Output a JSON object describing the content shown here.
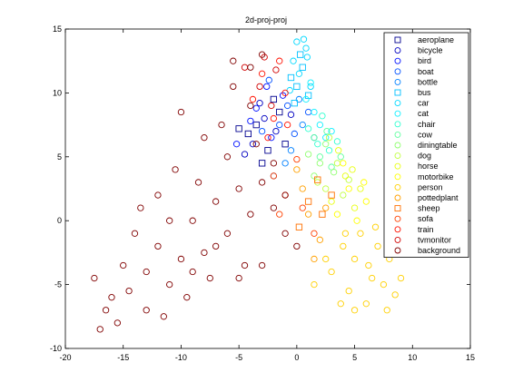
{
  "chart_data": {
    "type": "scatter",
    "title": "2d-proj-proj",
    "xlabel": "",
    "ylabel": "",
    "xlim": [
      -20,
      15
    ],
    "ylim": [
      -10,
      15
    ],
    "xticks": [
      -20,
      -15,
      -10,
      -5,
      0,
      5,
      10,
      15
    ],
    "yticks": [
      -10,
      -5,
      0,
      5,
      10,
      15
    ],
    "xtick_labels": [
      "-20",
      "-15",
      "-10",
      "-5",
      "0",
      "5",
      "10",
      "15"
    ],
    "ytick_labels": [
      "-10",
      "-5",
      "0",
      "5",
      "10",
      "15"
    ],
    "grid": false,
    "legend_position": "top-right",
    "series": [
      {
        "name": "aeroplane",
        "marker": "square",
        "color": "#00008f",
        "points": [
          [
            -2.5,
            5.5
          ],
          [
            -3.5,
            7.5
          ],
          [
            -1.5,
            8.5
          ],
          [
            -4.2,
            6.8
          ],
          [
            -2.0,
            9.5
          ],
          [
            -3.0,
            4.5
          ],
          [
            -1.0,
            6.0
          ],
          [
            -5.0,
            7.2
          ]
        ]
      },
      {
        "name": "bicycle",
        "marker": "circle",
        "color": "#0000c0",
        "points": [
          [
            -3.8,
            6.0
          ],
          [
            -2.8,
            8.0
          ],
          [
            -4.5,
            5.2
          ],
          [
            -1.8,
            7.0
          ],
          [
            -3.2,
            9.2
          ],
          [
            -0.5,
            8.3
          ]
        ]
      },
      {
        "name": "bird",
        "marker": "circle",
        "color": "#0010ff",
        "points": [
          [
            -4.0,
            7.8
          ],
          [
            -2.2,
            6.5
          ],
          [
            -5.2,
            6.0
          ],
          [
            -1.2,
            9.8
          ],
          [
            -3.5,
            8.8
          ],
          [
            -2.6,
            10.5
          ]
        ]
      },
      {
        "name": "boat",
        "marker": "circle",
        "color": "#0050ff",
        "points": [
          [
            -1.5,
            7.5
          ],
          [
            -0.8,
            9.0
          ],
          [
            -2.4,
            11.0
          ],
          [
            -3.0,
            7.0
          ],
          [
            -0.2,
            6.8
          ],
          [
            1.0,
            8.5
          ]
        ]
      },
      {
        "name": "bottle",
        "marker": "circle",
        "color": "#0080ff",
        "points": [
          [
            -1.0,
            4.5
          ],
          [
            0.5,
            7.5
          ],
          [
            -2.0,
            3.5
          ],
          [
            1.5,
            6.5
          ],
          [
            -0.5,
            5.5
          ],
          [
            0.2,
            9.5
          ]
        ]
      },
      {
        "name": "bus",
        "marker": "square",
        "color": "#00c0ff",
        "points": [
          [
            0.0,
            10.5
          ],
          [
            0.5,
            12.0
          ],
          [
            -0.5,
            11.2
          ],
          [
            1.0,
            9.8
          ],
          [
            0.3,
            13.0
          ],
          [
            -0.2,
            9.2
          ]
        ]
      },
      {
        "name": "car",
        "marker": "circle",
        "color": "#00d8ff",
        "points": [
          [
            0.2,
            11.5
          ],
          [
            0.8,
            13.5
          ],
          [
            -0.3,
            12.5
          ],
          [
            0.6,
            14.2
          ],
          [
            1.2,
            10.5
          ],
          [
            0.0,
            14.0
          ],
          [
            0.9,
            12.8
          ],
          [
            -0.6,
            10.2
          ]
        ]
      },
      {
        "name": "cat",
        "marker": "circle",
        "color": "#10f0ff",
        "points": [
          [
            1.5,
            8.5
          ],
          [
            2.0,
            7.5
          ],
          [
            0.8,
            9.5
          ],
          [
            2.5,
            6.5
          ],
          [
            1.2,
            10.8
          ],
          [
            3.0,
            7.0
          ]
        ]
      },
      {
        "name": "chair",
        "marker": "circle",
        "color": "#30ffd0",
        "points": [
          [
            1.8,
            6.0
          ],
          [
            2.8,
            5.5
          ],
          [
            1.0,
            7.2
          ],
          [
            3.5,
            6.2
          ],
          [
            2.2,
            8.2
          ]
        ]
      },
      {
        "name": "cow",
        "marker": "circle",
        "color": "#60ffa0",
        "points": [
          [
            2.0,
            5.0
          ],
          [
            3.0,
            4.2
          ],
          [
            1.5,
            6.5
          ],
          [
            2.6,
            7.0
          ],
          [
            3.8,
            5.0
          ]
        ]
      },
      {
        "name": "diningtable",
        "marker": "circle",
        "color": "#90ff70",
        "points": [
          [
            1.5,
            3.5
          ],
          [
            2.5,
            6.0
          ],
          [
            3.2,
            3.8
          ],
          [
            1.0,
            5.2
          ],
          [
            2.0,
            4.5
          ]
        ]
      },
      {
        "name": "dog",
        "marker": "circle",
        "color": "#c0ff40",
        "points": [
          [
            2.5,
            2.5
          ],
          [
            3.5,
            4.5
          ],
          [
            4.0,
            2.0
          ],
          [
            2.8,
            6.5
          ],
          [
            1.8,
            3.0
          ],
          [
            4.5,
            3.2
          ]
        ]
      },
      {
        "name": "horse",
        "marker": "circle",
        "color": "#e8ff10",
        "points": [
          [
            3.0,
            1.5
          ],
          [
            4.2,
            3.5
          ],
          [
            5.0,
            1.0
          ],
          [
            3.6,
            5.5
          ],
          [
            4.8,
            4.0
          ],
          [
            5.5,
            2.5
          ]
        ]
      },
      {
        "name": "motorbike",
        "marker": "circle",
        "color": "#ffff00",
        "points": [
          [
            3.5,
            0.5
          ],
          [
            4.5,
            2.5
          ],
          [
            5.2,
            0.0
          ],
          [
            6.0,
            1.5
          ],
          [
            4.0,
            4.5
          ],
          [
            5.8,
            3.0
          ]
        ]
      },
      {
        "name": "person",
        "marker": "circle",
        "color": "#ffd000",
        "points": [
          [
            5.0,
            -3.0
          ],
          [
            6.5,
            -4.5
          ],
          [
            4.0,
            -2.0
          ],
          [
            7.5,
            -5.0
          ],
          [
            5.5,
            -1.0
          ],
          [
            3.0,
            -4.0
          ],
          [
            8.0,
            -3.0
          ],
          [
            6.0,
            -6.5
          ],
          [
            4.5,
            -5.5
          ],
          [
            7.0,
            -2.0
          ],
          [
            2.5,
            -3.0
          ],
          [
            9.0,
            -4.5
          ],
          [
            5.0,
            -7.0
          ],
          [
            6.8,
            -0.5
          ],
          [
            3.8,
            -6.5
          ],
          [
            8.5,
            -5.8
          ],
          [
            1.5,
            -5.0
          ],
          [
            7.8,
            -7.0
          ],
          [
            4.2,
            -1.0
          ],
          [
            6.2,
            -3.5
          ]
        ]
      },
      {
        "name": "pottedplant",
        "marker": "circle",
        "color": "#ffa000",
        "points": [
          [
            1.0,
            0.5
          ],
          [
            2.0,
            -1.5
          ],
          [
            0.5,
            2.5
          ],
          [
            2.5,
            1.0
          ],
          [
            1.5,
            -3.0
          ],
          [
            0.0,
            4.0
          ]
        ]
      },
      {
        "name": "sheep",
        "marker": "square",
        "color": "#ff7000",
        "points": [
          [
            1.0,
            1.5
          ],
          [
            2.2,
            0.5
          ],
          [
            0.2,
            -0.5
          ],
          [
            1.8,
            3.2
          ],
          [
            3.0,
            2.0
          ]
        ]
      },
      {
        "name": "sofa",
        "marker": "circle",
        "color": "#ff4000",
        "points": [
          [
            -1.0,
            2.0
          ],
          [
            0.5,
            1.0
          ],
          [
            -2.0,
            3.5
          ],
          [
            1.5,
            -1.0
          ],
          [
            0.0,
            4.8
          ],
          [
            -1.5,
            0.5
          ]
        ]
      },
      {
        "name": "train",
        "marker": "circle",
        "color": "#ff1000",
        "points": [
          [
            -2.0,
            8.0
          ],
          [
            -1.0,
            10.0
          ],
          [
            -3.0,
            11.5
          ],
          [
            -2.5,
            6.5
          ],
          [
            -1.5,
            12.5
          ],
          [
            -3.8,
            9.5
          ],
          [
            -0.8,
            7.5
          ]
        ]
      },
      {
        "name": "tvmonitor",
        "marker": "circle",
        "color": "#d00000",
        "points": [
          [
            -2.2,
            9.0
          ],
          [
            -3.2,
            10.5
          ],
          [
            -1.8,
            11.8
          ],
          [
            -4.5,
            12.0
          ],
          [
            -2.8,
            12.8
          ]
        ]
      },
      {
        "name": "background",
        "marker": "circle",
        "color": "#800000",
        "points": [
          [
            -17.5,
            -4.5
          ],
          [
            -16.0,
            -6.0
          ],
          [
            -15.0,
            -3.5
          ],
          [
            -14.0,
            -1.0
          ],
          [
            -13.5,
            1.0
          ],
          [
            -12.0,
            -2.0
          ],
          [
            -11.0,
            -5.0
          ],
          [
            -10.0,
            -3.0
          ],
          [
            -9.0,
            0.0
          ],
          [
            -8.0,
            -2.5
          ],
          [
            -7.0,
            1.5
          ],
          [
            -6.0,
            -1.0
          ],
          [
            -5.0,
            2.5
          ],
          [
            -4.0,
            0.5
          ],
          [
            -3.0,
            3.0
          ],
          [
            -2.0,
            1.0
          ],
          [
            -1.0,
            -1.0
          ],
          [
            -13.0,
            -7.0
          ],
          [
            -15.5,
            -8.0
          ],
          [
            -12.0,
            2.0
          ],
          [
            -10.5,
            4.0
          ],
          [
            -8.5,
            3.0
          ],
          [
            -7.5,
            -4.5
          ],
          [
            -6.0,
            5.0
          ],
          [
            -4.5,
            -3.5
          ],
          [
            -3.5,
            6.0
          ],
          [
            -11.5,
            -7.5
          ],
          [
            -9.5,
            -6.0
          ],
          [
            -14.5,
            -5.5
          ],
          [
            -16.5,
            -7.0
          ],
          [
            -10.0,
            8.5
          ],
          [
            -8.0,
            6.5
          ],
          [
            -6.5,
            7.5
          ],
          [
            -5.5,
            10.5
          ],
          [
            -4.0,
            9.0
          ],
          [
            -2.0,
            4.5
          ],
          [
            -1.0,
            2.0
          ],
          [
            0.0,
            -2.0
          ],
          [
            -5.0,
            -4.5
          ],
          [
            -3.0,
            -3.5
          ],
          [
            -17.0,
            -8.5
          ],
          [
            -13.0,
            -4.0
          ],
          [
            -11.0,
            0.0
          ],
          [
            -9.0,
            -4.0
          ],
          [
            -7.0,
            -2.0
          ],
          [
            -4.0,
            12.0
          ],
          [
            -3.0,
            13.0
          ],
          [
            -5.5,
            12.5
          ]
        ]
      }
    ]
  }
}
